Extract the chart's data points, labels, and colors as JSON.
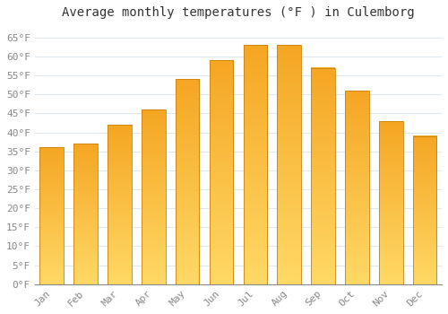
{
  "title": "Average monthly temperatures (°F ) in Culemborg",
  "months": [
    "Jan",
    "Feb",
    "Mar",
    "Apr",
    "May",
    "Jun",
    "Jul",
    "Aug",
    "Sep",
    "Oct",
    "Nov",
    "Dec"
  ],
  "values": [
    36,
    37,
    42,
    46,
    54,
    59,
    63,
    63,
    57,
    51,
    43,
    39
  ],
  "bar_color_bottom": "#F5A623",
  "bar_color_top": "#FFD966",
  "bar_edge_color": "#C8820A",
  "ylim": [
    0,
    68
  ],
  "yticks": [
    0,
    5,
    10,
    15,
    20,
    25,
    30,
    35,
    40,
    45,
    50,
    55,
    60,
    65
  ],
  "ytick_labels": [
    "0°F",
    "5°F",
    "10°F",
    "15°F",
    "20°F",
    "25°F",
    "30°F",
    "35°F",
    "40°F",
    "45°F",
    "50°F",
    "55°F",
    "60°F",
    "65°F"
  ],
  "background_color": "#ffffff",
  "grid_color": "#dde8f0",
  "title_fontsize": 10,
  "tick_fontsize": 8,
  "font_family": "monospace",
  "bar_width": 0.7
}
